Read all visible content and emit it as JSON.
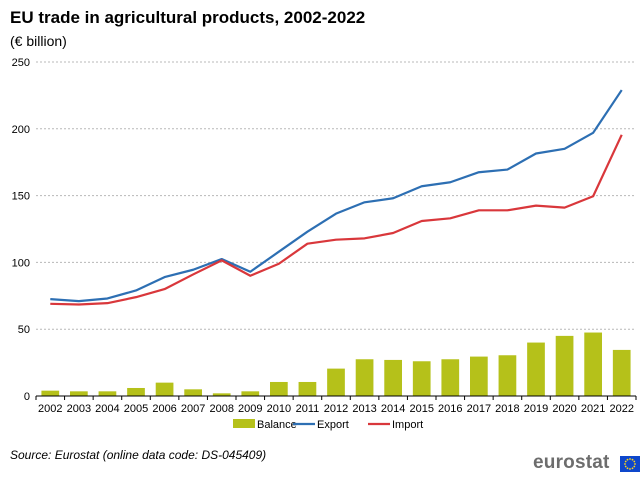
{
  "header": {
    "title": "EU trade in agricultural products, 2002-2022",
    "subtitle": "(€ billion)"
  },
  "footer": {
    "source": "Source: Eurostat (online data code: DS-045409)",
    "logo_text": "eurostat"
  },
  "colors": {
    "balance": "#b5c11a",
    "export": "#2d6fb3",
    "import": "#d9373b",
    "grid": "#b8b8b8",
    "axis": "#000000"
  },
  "chart_data": {
    "type": "bar+line",
    "categories": [
      "2002",
      "2003",
      "2004",
      "2005",
      "2006",
      "2007",
      "2008",
      "2009",
      "2010",
      "2011",
      "2012",
      "2013",
      "2014",
      "2015",
      "2016",
      "2017",
      "2018",
      "2019",
      "2020",
      "2021",
      "2022"
    ],
    "ylim": [
      0,
      250
    ],
    "yticks": [
      0,
      50,
      100,
      150,
      200,
      250
    ],
    "grid": true,
    "legend_position": "bottom",
    "series": [
      {
        "name": "Balance",
        "type": "bar",
        "color": "#b5c11a",
        "values": [
          4,
          3.5,
          3.5,
          6,
          10,
          5,
          2,
          3.5,
          10.5,
          10.5,
          20.5,
          27.5,
          27,
          26,
          27.5,
          29.5,
          30.5,
          40,
          45,
          47.5,
          34.5
        ]
      },
      {
        "name": "Export",
        "type": "line",
        "color": "#2d6fb3",
        "values": [
          72.5,
          71,
          73,
          79,
          89,
          94.5,
          102.5,
          93,
          108,
          123,
          136.5,
          145,
          148,
          157,
          160,
          167.5,
          169.5,
          181.5,
          185,
          197,
          229
        ]
      },
      {
        "name": "Import",
        "type": "line",
        "color": "#d9373b",
        "values": [
          69,
          68.5,
          69.5,
          74,
          80,
          91,
          101.5,
          90,
          99,
          114,
          117,
          118,
          122,
          131,
          133,
          139,
          139,
          142.5,
          141,
          149.5,
          195.5
        ]
      }
    ]
  }
}
